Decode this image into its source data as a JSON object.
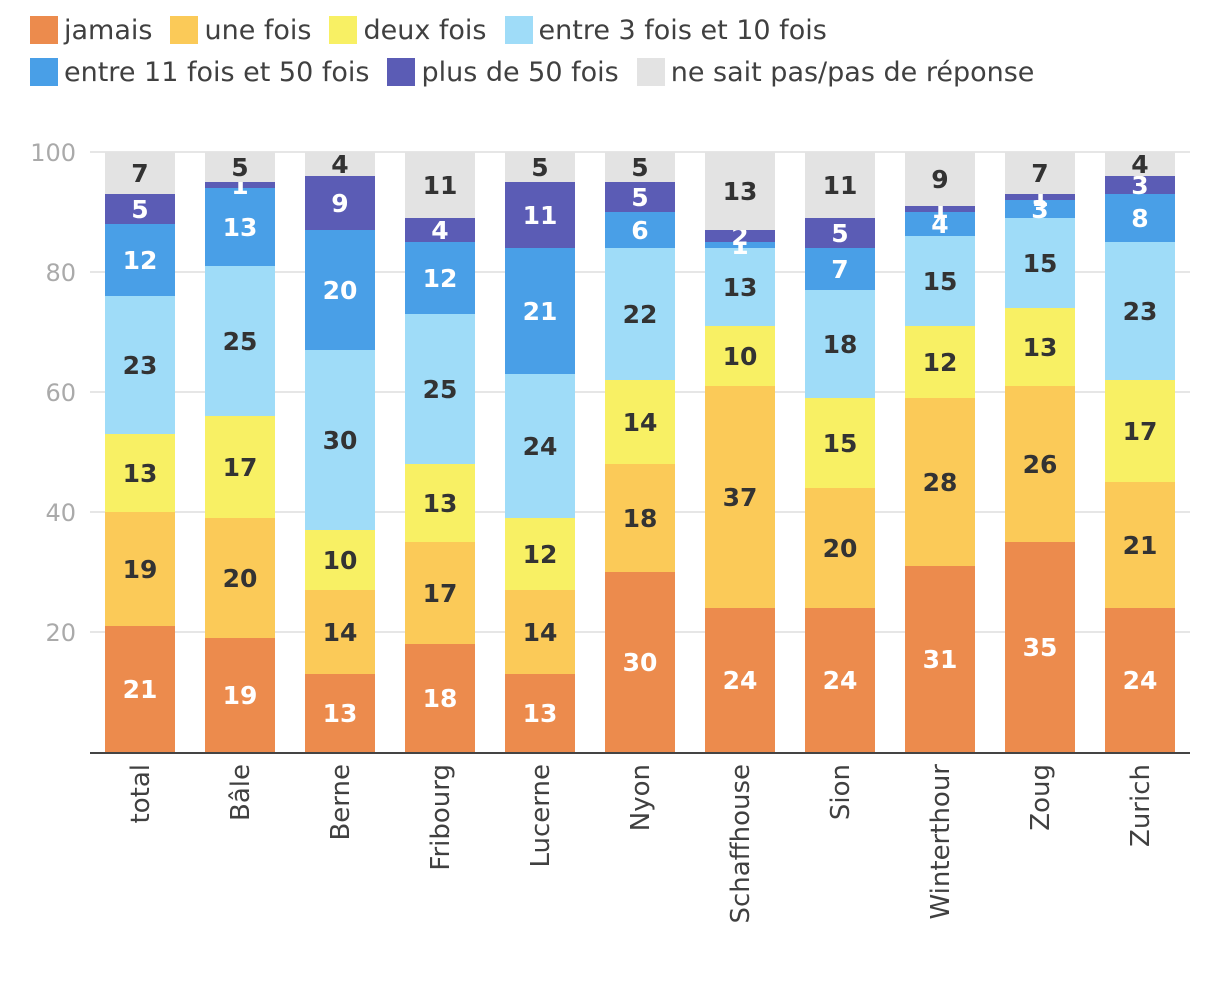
{
  "chart_data": {
    "type": "bar",
    "stacked": true,
    "title": "",
    "xlabel": "",
    "ylabel": "",
    "ylim": [
      0,
      100
    ],
    "yticks": [
      20,
      40,
      60,
      80,
      100
    ],
    "grid": true,
    "legend_position": "top",
    "categories": [
      "total",
      "Bâle",
      "Berne",
      "Fribourg",
      "Lucerne",
      "Nyon",
      "Schaffhouse",
      "Sion",
      "Winterthour",
      "Zoug",
      "Zurich"
    ],
    "series": [
      {
        "name": "jamais",
        "color": "#ec8b4d",
        "label_color": "#ffffff",
        "values": [
          21,
          19,
          13,
          18,
          13,
          30,
          24,
          24,
          31,
          35,
          24
        ]
      },
      {
        "name": "une fois",
        "color": "#fbca58",
        "label_color": "#333333",
        "values": [
          19,
          20,
          14,
          17,
          14,
          18,
          37,
          20,
          28,
          26,
          21
        ]
      },
      {
        "name": "deux fois",
        "color": "#f8f064",
        "label_color": "#333333",
        "values": [
          13,
          17,
          10,
          13,
          12,
          14,
          10,
          15,
          12,
          13,
          17
        ]
      },
      {
        "name": "entre 3 fois et 10 fois",
        "color": "#9fdcf8",
        "label_color": "#333333",
        "values": [
          23,
          25,
          30,
          25,
          24,
          22,
          13,
          18,
          15,
          15,
          23
        ]
      },
      {
        "name": "entre 11 fois et 50 fois",
        "color": "#499fe7",
        "label_color": "#ffffff",
        "values": [
          12,
          13,
          20,
          12,
          21,
          6,
          1,
          7,
          4,
          3,
          8
        ]
      },
      {
        "name": "plus de 50 fois",
        "color": "#5b5cb5",
        "label_color": "#ffffff",
        "values": [
          5,
          1,
          9,
          4,
          11,
          5,
          2,
          5,
          1,
          1,
          3
        ]
      },
      {
        "name": "ne sait pas/pas de réponse",
        "color": "#e3e3e3",
        "label_color": "#333333",
        "values": [
          7,
          5,
          4,
          11,
          5,
          5,
          13,
          11,
          9,
          7,
          4
        ]
      }
    ]
  }
}
